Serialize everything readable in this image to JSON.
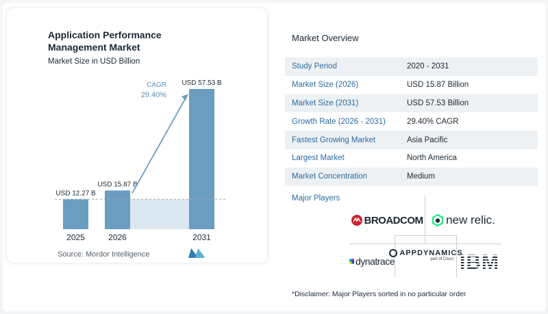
{
  "chart_data": {
    "type": "bar",
    "title": "Application Performance Management Market",
    "subtitle": "Market Size in USD Billion",
    "categories": [
      "2025",
      "2026",
      "2031"
    ],
    "values": [
      12.27,
      15.87,
      57.53
    ],
    "data_labels": [
      "USD 12.27 B",
      "USD 15.87 B",
      "USD 57.53 B"
    ],
    "cagr_label": "CAGR",
    "cagr_value": "29.40%",
    "ylim": [
      0,
      60
    ],
    "grid": false,
    "colors": {
      "bar": "#6b9dc0",
      "bar_light": "#dbe7f1",
      "arrow": "#6b9dc0",
      "cagr_text": "#5b8fb8"
    }
  },
  "source": "Source:  Mordor Intelligence",
  "overview": {
    "title": "Market Overview",
    "rows": [
      {
        "key": "Study Period",
        "value": "2020 - 2031"
      },
      {
        "key": "Market Size (2026)",
        "value": "USD 15.87 Billion"
      },
      {
        "key": "Market Size (2031)",
        "value": "USD 57.53 Billion"
      },
      {
        "key": "Growth Rate (2026 - 2031)",
        "value": "29.40% CAGR"
      },
      {
        "key": "Fastest Growing Market",
        "value": "Asia Pacific"
      },
      {
        "key": "Largest Market",
        "value": "North America"
      },
      {
        "key": "Market Concentration",
        "value": "Medium"
      }
    ]
  },
  "players": {
    "title": "Major Players",
    "logos": {
      "broadcom": "BROADCOM",
      "newrelic": "new relic.",
      "dynatrace": "dynatrace",
      "appdynamics": "APPDYNAMICS",
      "appdynamics_sub": "part of Cisco",
      "ibm": "IBM"
    }
  },
  "disclaimer": "*Disclaimer: Major Players sorted in no particular order"
}
